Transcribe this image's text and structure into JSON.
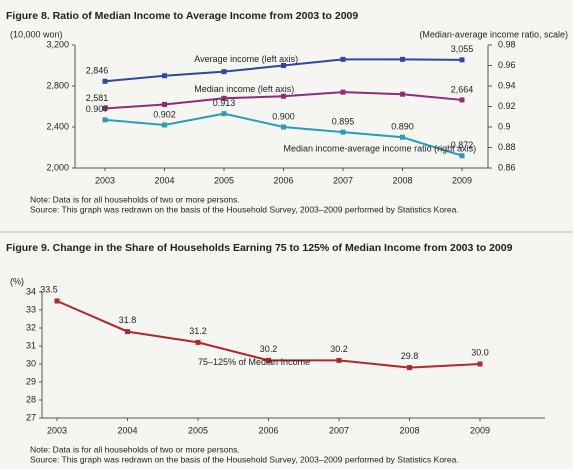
{
  "chart_data": [
    {
      "type": "line",
      "title": "Figure 8. Ratio of Median Income to Average Income from 2003 to 2009",
      "ylabel": "(10,000 won)",
      "y2label": "(Median-average income ratio, scale)",
      "categories": [
        "2003",
        "2004",
        "2005",
        "2006",
        "2007",
        "2008",
        "2009"
      ],
      "ylim": [
        2000,
        3200
      ],
      "yticks": [
        {
          "value": 2000,
          "label": "2,000"
        },
        {
          "value": 2400,
          "label": "2,400"
        },
        {
          "value": 2800,
          "label": "2,800"
        },
        {
          "value": 3200,
          "label": "3,200"
        }
      ],
      "y2lim": [
        0.86,
        0.98
      ],
      "y2ticks": [
        0.86,
        0.88,
        0.9,
        0.92,
        0.94,
        0.96,
        0.98
      ],
      "grid": false,
      "series": [
        {
          "name": "Average income (left axis)",
          "color": "#2c4a9e",
          "values": [
            2846,
            2900,
            2940,
            3000,
            3060,
            3060,
            3055
          ],
          "value_labels": [
            "2,846",
            null,
            null,
            null,
            null,
            null,
            "3,055"
          ]
        },
        {
          "name": "Median income (left axis)",
          "color": "#8e2b7c",
          "values": [
            2581,
            2620,
            2680,
            2700,
            2740,
            2720,
            2664
          ],
          "value_labels": [
            "2,581",
            null,
            null,
            null,
            null,
            null,
            "2,664"
          ]
        },
        {
          "name": "Median income-average income ratio (right axis)",
          "color": "#2a9cb4",
          "axis": "y2",
          "values": [
            0.907,
            0.902,
            0.913,
            0.9,
            0.895,
            0.89,
            0.872
          ],
          "value_labels": [
            "0.907",
            "0.902",
            "0.913",
            "0.900",
            "0.895",
            "0.890",
            "0.872"
          ]
        }
      ],
      "note": "Note: Data is for all households of two or more persons.",
      "source": "Source: This graph was redrawn on the basis of the Household Survey, 2003–2009 performed by Statistics Korea."
    },
    {
      "type": "line",
      "title": "Figure 9. Change in the Share of Households Earning 75 to 125% of Median Income from 2003 to 2009",
      "ylabel": "(%)",
      "categories": [
        "2003",
        "2004",
        "2005",
        "2006",
        "2007",
        "2008",
        "2009"
      ],
      "ylim": [
        27,
        34
      ],
      "yticks": [
        27,
        28,
        29,
        30,
        31,
        32,
        33,
        34
      ],
      "grid": false,
      "series": [
        {
          "name": "75–125% of Median Income",
          "color": "#b0282a",
          "values": [
            33.5,
            31.8,
            31.2,
            30.2,
            30.2,
            29.8,
            30.0
          ],
          "value_labels": [
            "33.5",
            "31.8",
            "31.2",
            "30.2",
            "30.2",
            "29.8",
            "30.0"
          ]
        }
      ],
      "note": "Note: Data is for all households of two or more persons.",
      "source": "Source: This graph was redrawn on the basis of the Household Survey, 2003–2009 performed by Statistics Korea."
    }
  ]
}
